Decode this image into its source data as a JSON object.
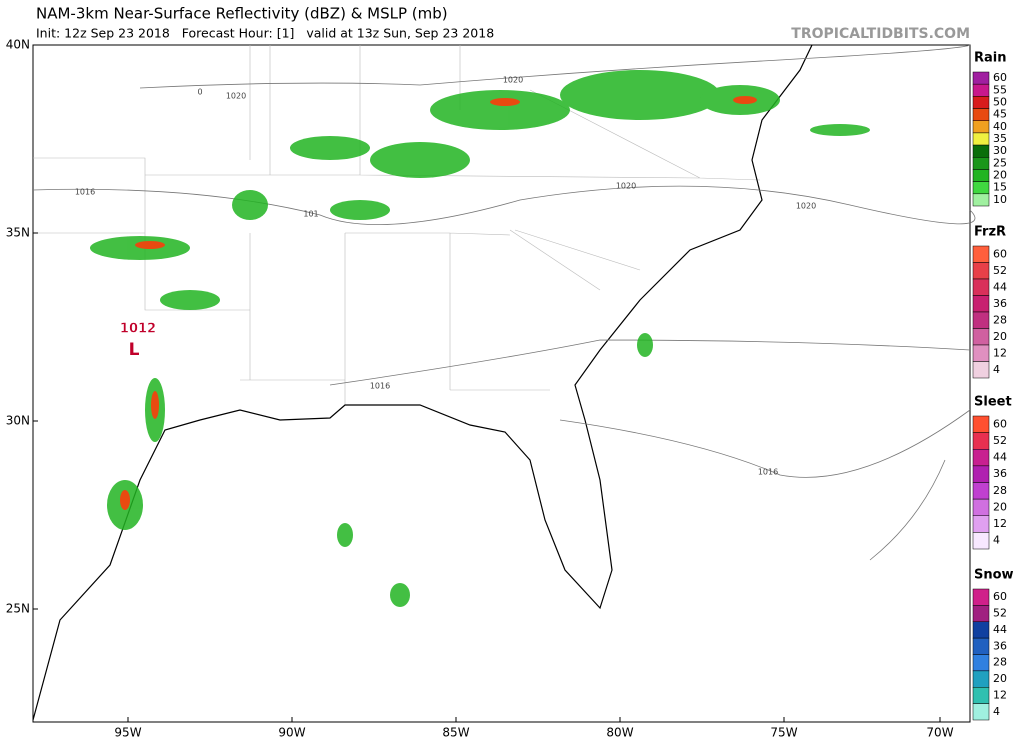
{
  "header": {
    "title": "NAM-3km Near-Surface Reflectivity (dBZ) & MSLP (mb)",
    "subtitle": "Init: 12z Sep 23 2018   Forecast Hour: [1]   valid at 13z Sun, Sep 23 2018",
    "watermark": "TROPICALTIDBITS.COM"
  },
  "map": {
    "lat_labels": [
      "40N",
      "35N",
      "30N",
      "25N"
    ],
    "lon_labels": [
      "95W",
      "90W",
      "85W",
      "80W",
      "75W",
      "70W"
    ],
    "isobar_labels": [
      "1020",
      "0",
      "1020",
      "1016",
      "101",
      "1020",
      "1020",
      "1016",
      "1016"
    ],
    "low": {
      "pressure": "1012",
      "symbol": "L"
    }
  },
  "legends": [
    {
      "title": "Rain",
      "levels": [
        {
          "value": 60,
          "color": "#a01fa0"
        },
        {
          "value": 55,
          "color": "#c8188c"
        },
        {
          "value": 50,
          "color": "#d81c1c"
        },
        {
          "value": 45,
          "color": "#e84a10"
        },
        {
          "value": 40,
          "color": "#f0a020"
        },
        {
          "value": 35,
          "color": "#f0f040"
        },
        {
          "value": 30,
          "color": "#0a6e0a"
        },
        {
          "value": 25,
          "color": "#1a961a"
        },
        {
          "value": 20,
          "color": "#22b422"
        },
        {
          "value": 15,
          "color": "#40d840"
        },
        {
          "value": 10,
          "color": "#a0f0a0"
        }
      ]
    },
    {
      "title": "FrzR",
      "levels": [
        {
          "value": 60,
          "color": "#ff5f3c"
        },
        {
          "value": 52,
          "color": "#e84048"
        },
        {
          "value": 44,
          "color": "#d9305a"
        },
        {
          "value": 36,
          "color": "#c82070"
        },
        {
          "value": 28,
          "color": "#c03080"
        },
        {
          "value": 20,
          "color": "#d060a0"
        },
        {
          "value": 12,
          "color": "#e090c0"
        },
        {
          "value": 4,
          "color": "#f0d0e0"
        }
      ]
    },
    {
      "title": "Sleet",
      "levels": [
        {
          "value": 60,
          "color": "#ff5030"
        },
        {
          "value": 52,
          "color": "#e83050"
        },
        {
          "value": 44,
          "color": "#c82090"
        },
        {
          "value": 36,
          "color": "#b020b0"
        },
        {
          "value": 28,
          "color": "#c040d0"
        },
        {
          "value": 20,
          "color": "#d070e0"
        },
        {
          "value": 12,
          "color": "#e0a0f0"
        },
        {
          "value": 4,
          "color": "#f8e8ff"
        }
      ]
    },
    {
      "title": "Snow",
      "levels": [
        {
          "value": 60,
          "color": "#d0208a"
        },
        {
          "value": 52,
          "color": "#a02080"
        },
        {
          "value": 44,
          "color": "#1040a0"
        },
        {
          "value": 36,
          "color": "#2060c0"
        },
        {
          "value": 28,
          "color": "#3080e0"
        },
        {
          "value": 20,
          "color": "#20a0c0"
        },
        {
          "value": 12,
          "color": "#30c0b0"
        },
        {
          "value": 4,
          "color": "#a0f0e0"
        }
      ]
    }
  ]
}
